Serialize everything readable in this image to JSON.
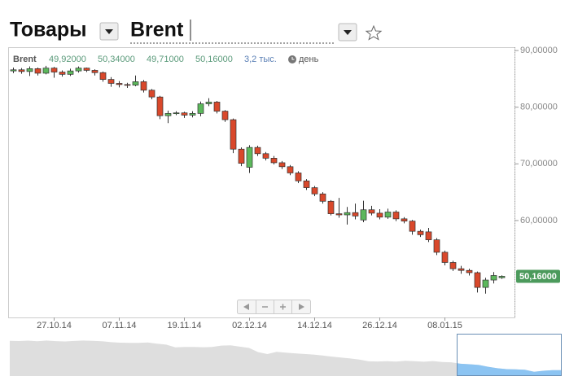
{
  "header": {
    "category": "Товары",
    "instrument": "Brent"
  },
  "chart_data": {
    "type": "candlestick",
    "legend": {
      "symbol": "Brent",
      "values": [
        "49,92000",
        "50,34000",
        "49,71000",
        "50,16000"
      ],
      "volume": "3,2 тыс.",
      "period": "день"
    },
    "last_label": "50,16000",
    "categories": [
      null,
      null,
      null,
      null,
      null,
      "27.10.14",
      null,
      null,
      null,
      null,
      null,
      null,
      null,
      "07.11.14",
      null,
      null,
      null,
      null,
      null,
      null,
      null,
      "19.11.14",
      null,
      null,
      null,
      null,
      null,
      null,
      null,
      "02.12.14",
      null,
      null,
      null,
      null,
      null,
      null,
      null,
      "14.12.14",
      null,
      null,
      null,
      null,
      null,
      null,
      null,
      "26.12.14",
      null,
      null,
      null,
      null,
      null,
      null,
      null,
      "08.01.15",
      null,
      null,
      null,
      null,
      null,
      null,
      null
    ],
    "open": [
      86.4,
      86.6,
      86.3,
      86.8,
      86.0,
      86.9,
      86.2,
      85.8,
      86.4,
      86.9,
      86.5,
      86.1,
      84.9,
      84.2,
      84.0,
      83.9,
      84.5,
      83.0,
      81.8,
      78.5,
      78.9,
      79.0,
      78.6,
      78.9,
      80.6,
      80.9,
      79.3,
      77.8,
      72.6,
      69.4,
      72.9,
      71.8,
      71.0,
      70.2,
      69.5,
      68.4,
      67.0,
      65.8,
      64.7,
      63.4,
      61.2,
      61.0,
      61.4,
      60.1,
      61.9,
      61.3,
      60.6,
      61.5,
      60.3,
      59.9,
      58.1,
      58.0,
      56.6,
      54.4,
      52.6,
      51.5,
      51.2,
      50.8,
      48.2,
      49.5,
      49.92
    ],
    "high": [
      87.0,
      86.9,
      87.2,
      87.0,
      87.3,
      87.1,
      86.5,
      86.8,
      87.2,
      87.0,
      86.7,
      86.3,
      85.3,
      84.6,
      84.3,
      85.6,
      84.8,
      83.2,
      82.0,
      79.4,
      79.3,
      79.2,
      79.3,
      81.0,
      81.6,
      81.1,
      79.5,
      78.0,
      72.9,
      73.3,
      73.2,
      72.1,
      71.4,
      70.5,
      69.8,
      68.7,
      67.3,
      66.1,
      65.0,
      63.6,
      64.0,
      62.4,
      63.0,
      63.5,
      62.6,
      62.0,
      62.1,
      61.8,
      60.6,
      60.1,
      58.4,
      58.7,
      56.9,
      54.7,
      52.9,
      52.0,
      51.5,
      51.0,
      49.9,
      50.9,
      50.34
    ],
    "low": [
      86.0,
      85.9,
      85.5,
      85.6,
      85.8,
      85.2,
      85.4,
      85.5,
      86.1,
      86.2,
      85.6,
      84.5,
      83.6,
      83.5,
      83.4,
      83.7,
      82.6,
      81.4,
      77.9,
      77.2,
      78.6,
      78.1,
      78.2,
      78.4,
      80.2,
      78.9,
      77.4,
      71.9,
      69.6,
      68.4,
      71.4,
      70.6,
      69.9,
      69.1,
      68.0,
      66.6,
      65.4,
      64.3,
      63.0,
      60.9,
      60.5,
      59.3,
      60.2,
      59.7,
      60.9,
      60.2,
      60.3,
      59.9,
      59.5,
      57.5,
      57.1,
      56.2,
      53.9,
      52.1,
      51.1,
      50.6,
      50.3,
      47.3,
      47.1,
      48.9,
      49.71
    ],
    "close": [
      86.6,
      86.3,
      86.8,
      86.0,
      86.9,
      86.2,
      85.8,
      86.4,
      86.9,
      86.5,
      86.1,
      84.9,
      84.2,
      84.0,
      83.9,
      84.5,
      83.0,
      81.8,
      78.5,
      78.9,
      79.0,
      78.6,
      78.9,
      80.6,
      80.9,
      79.3,
      77.8,
      72.6,
      70.1,
      72.9,
      71.8,
      71.0,
      70.2,
      69.5,
      68.4,
      67.0,
      65.8,
      64.7,
      63.4,
      61.2,
      61.0,
      61.4,
      60.8,
      61.9,
      61.3,
      60.6,
      61.5,
      60.3,
      59.9,
      58.1,
      57.5,
      56.6,
      54.4,
      52.6,
      51.5,
      51.2,
      50.8,
      48.2,
      49.5,
      50.3,
      50.16
    ],
    "up_color": "#5cb85c",
    "down_color": "#d9482b",
    "ylim": [
      42.9,
      90.3
    ],
    "yticks": [
      {
        "value": 60,
        "label": "60,00000"
      },
      {
        "value": 70,
        "label": "70,00000"
      },
      {
        "value": 80,
        "label": "80,00000"
      },
      {
        "value": 90,
        "label": "90,00000"
      }
    ]
  }
}
